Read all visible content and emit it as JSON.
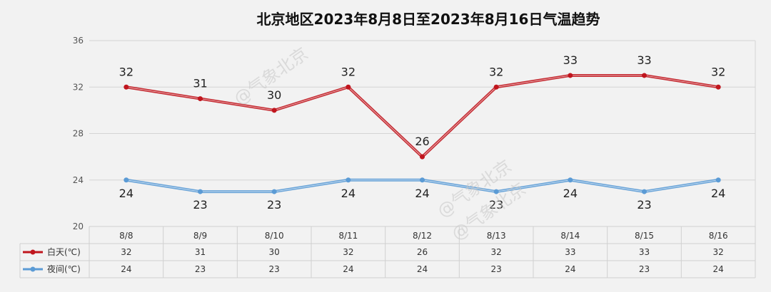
{
  "chart_data": {
    "type": "line",
    "title": "北京地区2023年8月8日至2023年8月16日气温趋势",
    "categories": [
      "8/8",
      "8/9",
      "8/10",
      "8/11",
      "8/12",
      "8/13",
      "8/14",
      "8/15",
      "8/16"
    ],
    "ylim": [
      20,
      36
    ],
    "yticks": [
      20,
      24,
      28,
      32,
      36
    ],
    "grid": true,
    "legend": "bottom-left (data table)",
    "series": [
      {
        "name": "白天(℃)",
        "color": "#c0161e",
        "values": [
          32,
          31,
          30,
          32,
          26,
          32,
          33,
          33,
          32
        ]
      },
      {
        "name": "夜间(℃)",
        "color": "#5b9bd5",
        "values": [
          24,
          23,
          23,
          24,
          24,
          23,
          24,
          23,
          24
        ]
      }
    ]
  },
  "watermarks": [
    "@气象北京",
    "@气象北京",
    "@气象北京"
  ]
}
